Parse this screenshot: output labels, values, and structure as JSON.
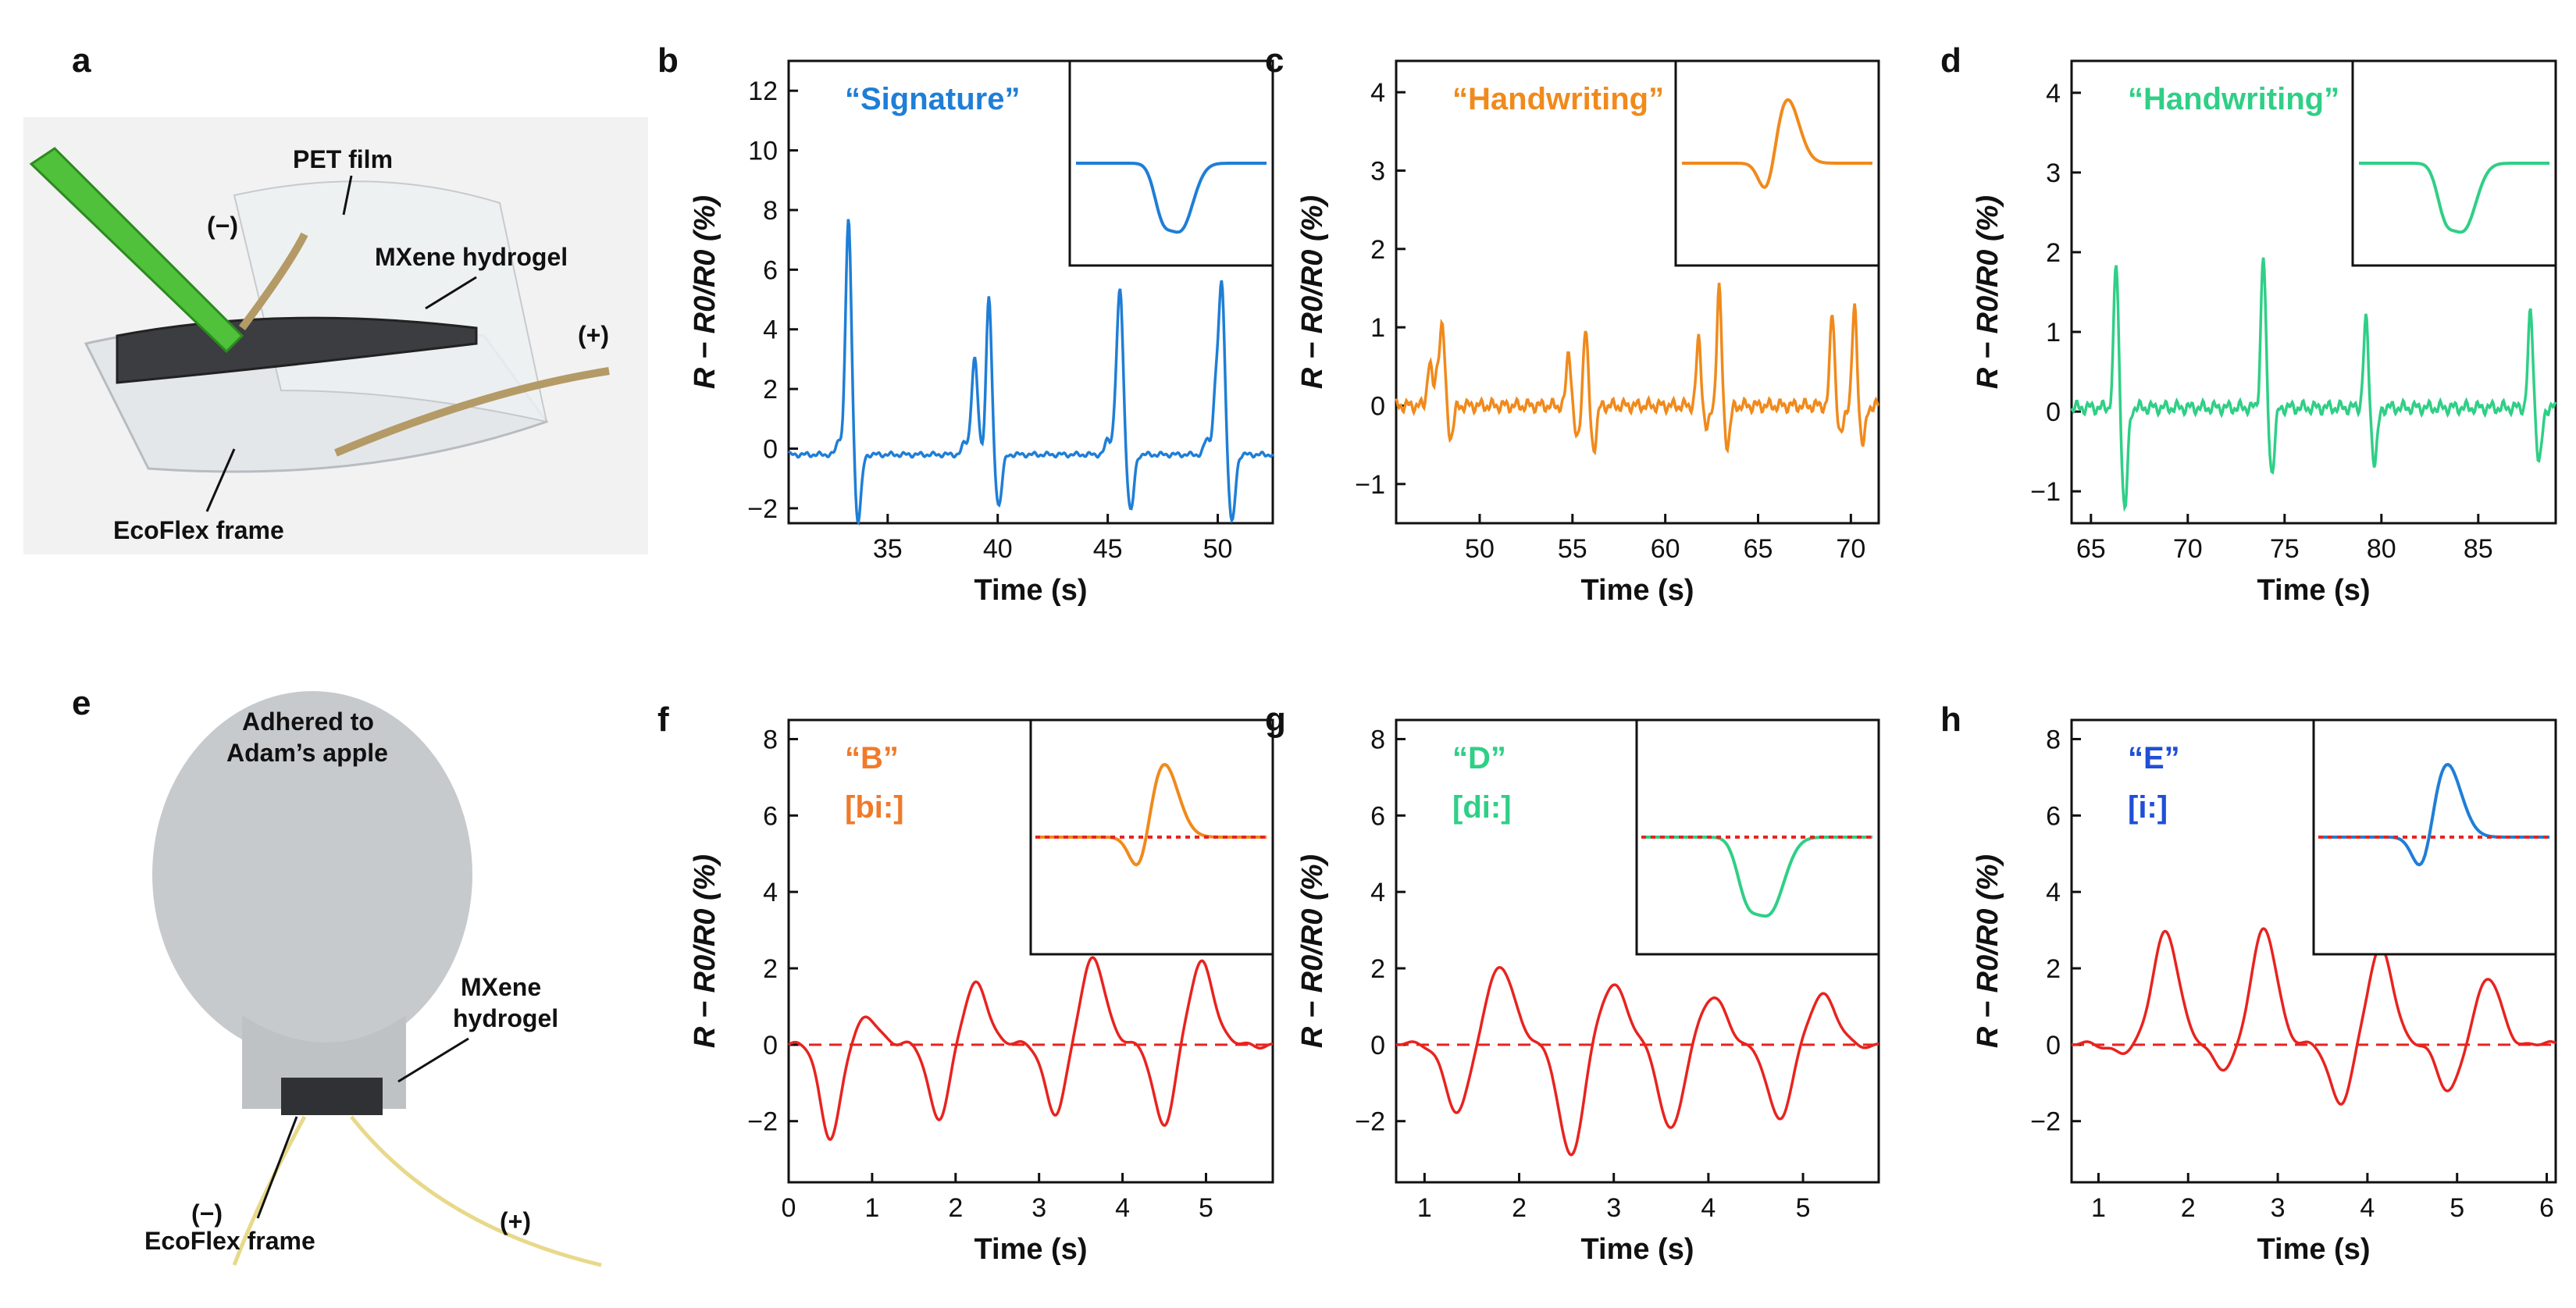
{
  "panels": {
    "a": {
      "label": "a",
      "annotations": {
        "pet": "PET film",
        "minus": "(−)",
        "mxene": "MXene hydrogel",
        "plus": "(+)",
        "ecoflex": "EcoFlex frame"
      }
    },
    "e": {
      "label": "e",
      "annotations": {
        "adhered1": "Adhered to",
        "adhered2": "Adam’s apple",
        "mx1": "MXene",
        "mx2": "hydrogel",
        "minus": "(−)",
        "ecoflex": "EcoFlex frame",
        "plus": "(+)"
      }
    }
  },
  "chart_data": [
    {
      "id": "b",
      "label": "b",
      "type": "line",
      "title": "“Signature”",
      "title_color": "#1f7ed6",
      "line_color": "#1f7ed6",
      "xlabel": "Time (s)",
      "ylabel": "R − R0/R0 (%)",
      "xlim": [
        30.5,
        52.5
      ],
      "ylim": [
        -2.5,
        13
      ],
      "xticks": [
        35,
        40,
        45,
        50
      ],
      "yticks": [
        -2,
        0,
        2,
        4,
        6,
        8,
        10,
        12
      ],
      "baseline": -0.2,
      "events": [
        [
          32.8,
          0.5,
          3.5
        ],
        [
          33.2,
          4.5,
          -2.3
        ],
        [
          38.5,
          0.4,
          3.2
        ],
        [
          39.6,
          5.3,
          -1.7
        ],
        [
          45.0,
          0.5,
          2.6
        ],
        [
          45.6,
          3.8,
          -1.9
        ],
        [
          49.5,
          0.5,
          2.6
        ],
        [
          50.2,
          5.2,
          -2.3
        ]
      ],
      "inset": {
        "has_dashed_zero": false
      }
    },
    {
      "id": "c",
      "label": "c",
      "type": "line",
      "title": "“Handwriting”",
      "title_color": "#f08a1c",
      "line_color": "#f08a1c",
      "xlabel": "Time (s)",
      "ylabel": "R − R0/R0 (%)",
      "xlim": [
        45.5,
        71.5
      ],
      "ylim": [
        -1.5,
        4.4
      ],
      "xticks": [
        50,
        55,
        60,
        65,
        70
      ],
      "yticks": [
        -1,
        0,
        1,
        2,
        3,
        4
      ],
      "baseline": 0.0,
      "events": [
        [
          47.3,
          0.55,
          0.5
        ],
        [
          48.0,
          0.9,
          -0.4
        ],
        [
          54.8,
          0.7,
          -0.45
        ],
        [
          55.7,
          1.0,
          -0.55
        ],
        [
          61.8,
          0.85,
          -0.3
        ],
        [
          62.9,
          1.5,
          -0.5
        ],
        [
          69.0,
          1.2,
          -0.4
        ],
        [
          70.2,
          1.25,
          -0.5
        ]
      ],
      "inset": {
        "has_dashed_zero": false
      }
    },
    {
      "id": "d",
      "label": "d",
      "type": "line",
      "title": "“Handwriting”",
      "title_color": "#2fcf86",
      "line_color": "#2fcf86",
      "xlabel": "Time (s)",
      "ylabel": "R − R0/R0 (%)",
      "xlim": [
        64,
        89
      ],
      "ylim": [
        -1.4,
        4.4
      ],
      "xticks": [
        65,
        70,
        75,
        80,
        85
      ],
      "yticks": [
        -1,
        0,
        1,
        2,
        3,
        4
      ],
      "baseline": 0.05,
      "events": [
        [
          66.3,
          1.8,
          -1.3
        ],
        [
          73.9,
          1.9,
          -0.8
        ],
        [
          79.2,
          1.1,
          -0.7
        ],
        [
          87.7,
          1.2,
          -0.7
        ]
      ],
      "inset": {
        "has_dashed_zero": false
      }
    },
    {
      "id": "f",
      "label": "f",
      "type": "line",
      "title": "“B”",
      "subtitle": "[bi:]",
      "title_color": "#f07a2a",
      "line_color": "#e8231f",
      "xlabel": "Time (s)",
      "ylabel": "R − R0/R0 (%)",
      "xlim": [
        0,
        5.8
      ],
      "ylim": [
        -3.6,
        8.5
      ],
      "xticks": [
        0,
        1,
        2,
        3,
        4,
        5
      ],
      "yticks": [
        -2,
        0,
        2,
        4,
        6,
        8
      ],
      "baseline": 0.0,
      "dashed_zero": true,
      "events": [
        [
          0.5,
          -2.4,
          0.7
        ],
        [
          1.8,
          -1.9,
          1.6
        ],
        [
          3.2,
          -1.8,
          2.3
        ],
        [
          4.5,
          -2.1,
          2.2
        ]
      ],
      "inset": {
        "marker_color": "#f08a1c",
        "ref_line": "#e8231f"
      }
    },
    {
      "id": "g",
      "label": "g",
      "type": "line",
      "title": "“D”",
      "subtitle": "[di:]",
      "title_color": "#2fcf86",
      "line_color": "#e8231f",
      "xlabel": "Time (s)",
      "ylabel": "R − R0/R0 (%)",
      "xlim": [
        0.7,
        5.8
      ],
      "ylim": [
        -3.6,
        8.5
      ],
      "xticks": [
        1,
        2,
        3,
        4,
        5
      ],
      "yticks": [
        -2,
        0,
        2,
        4,
        6,
        8
      ],
      "baseline": 0.0,
      "dashed_zero": true,
      "events": [
        [
          1.35,
          -1.8,
          2.1
        ],
        [
          2.55,
          -2.9,
          1.6
        ],
        [
          3.6,
          -2.2,
          1.2
        ],
        [
          4.75,
          -2.0,
          1.3
        ]
      ],
      "inset": {
        "marker_color": "#2fcf86",
        "ref_line": "#e8231f"
      }
    },
    {
      "id": "h",
      "label": "h",
      "type": "line",
      "title": "“E”",
      "subtitle": "[i:]",
      "title_color": "#1f4fd6",
      "line_color": "#e8231f",
      "xlabel": "Time (s)",
      "ylabel": "R − R0/R0 (%)",
      "xlim": [
        0.7,
        6.1
      ],
      "ylim": [
        -3.6,
        8.5
      ],
      "xticks": [
        1,
        2,
        3,
        4,
        5,
        6
      ],
      "yticks": [
        -2,
        0,
        2,
        4,
        6,
        8
      ],
      "baseline": 0.0,
      "dashed_zero": true,
      "events": [
        [
          1.3,
          -0.2,
          3.0
        ],
        [
          2.4,
          -0.6,
          3.0
        ],
        [
          3.7,
          -1.5,
          2.5
        ],
        [
          4.9,
          -1.2,
          1.7
        ]
      ],
      "inset": {
        "marker_color": "#1f7ed6",
        "ref_line": "#e8231f"
      }
    }
  ]
}
